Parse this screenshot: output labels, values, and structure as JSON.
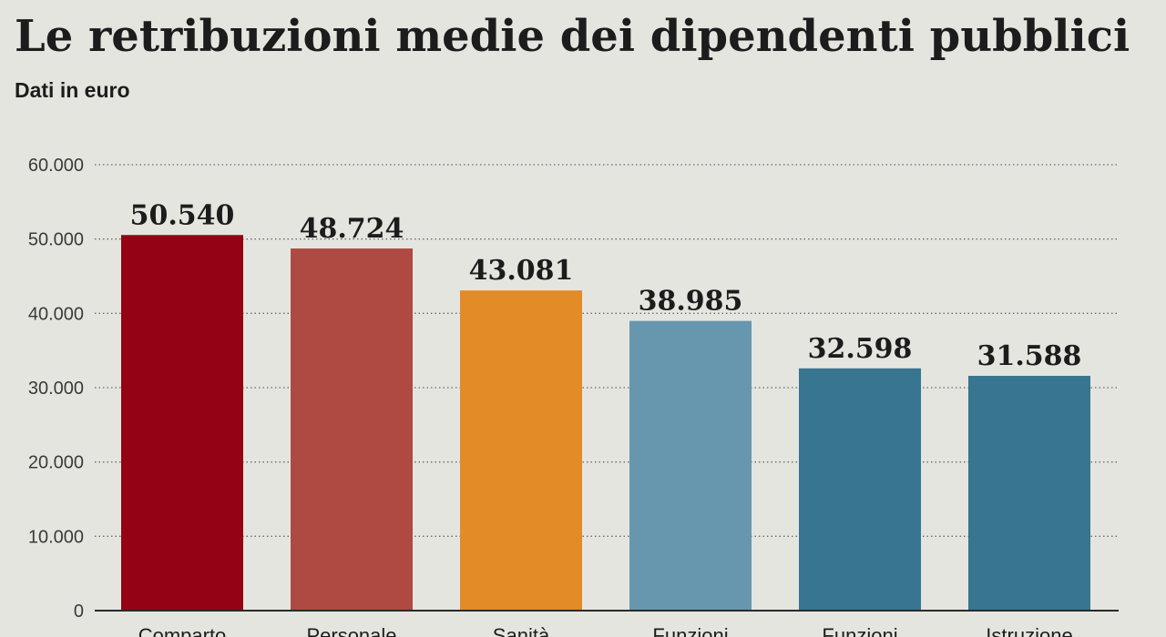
{
  "chart_data": {
    "type": "bar",
    "title": "Le retribuzioni medie dei dipendenti pubblici",
    "subtitle": "Dati in euro",
    "xlabel": "",
    "ylabel": "",
    "ylim": [
      0,
      60000
    ],
    "yticks": [
      0,
      10000,
      20000,
      30000,
      40000,
      50000,
      60000
    ],
    "ytick_labels": [
      "0",
      "10.000",
      "20.000",
      "30.000",
      "40.000",
      "50.000",
      "60.000"
    ],
    "grid": "horizontal dotted",
    "categories": [
      "Comparto",
      "Personale",
      "Sanità",
      "Funzioni",
      "Funzioni",
      "Istruzione"
    ],
    "values": [
      50540,
      48724,
      43081,
      38985,
      32598,
      31588
    ],
    "value_labels": [
      "50.540",
      "48.724",
      "43.081",
      "38.985",
      "32.598",
      "31.588"
    ],
    "colors": [
      "#930315",
      "#ae4a41",
      "#e38b26",
      "#6797ae",
      "#377590",
      "#377590"
    ]
  }
}
